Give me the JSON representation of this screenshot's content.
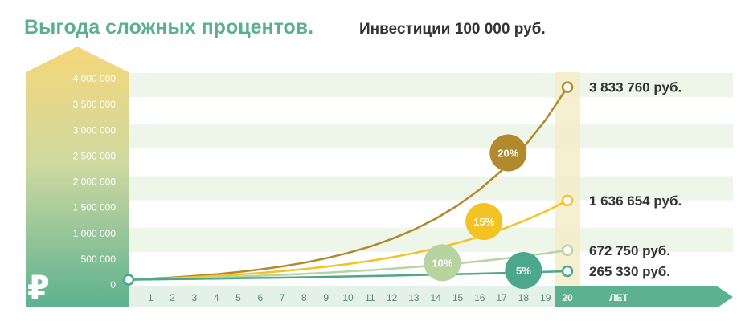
{
  "header": {
    "title": "Выгода сложных процентов.",
    "subtitle": "Инвестиции  100 000 руб."
  },
  "currency_symbol": "₽",
  "chart_data": {
    "type": "line",
    "x": [
      0,
      1,
      2,
      3,
      4,
      5,
      6,
      7,
      8,
      9,
      10,
      11,
      12,
      13,
      14,
      15,
      16,
      17,
      18,
      19,
      20
    ],
    "x_tick_labels": [
      "1",
      "2",
      "3",
      "4",
      "5",
      "6",
      "7",
      "8",
      "9",
      "10",
      "11",
      "12",
      "13",
      "14",
      "15",
      "16",
      "17",
      "18",
      "19",
      "20"
    ],
    "x_unit_label": "ЛЕТ",
    "y_tick_labels": [
      "0",
      "500 000",
      "1 000 000",
      "1 500 000",
      "2 000 000",
      "2 500 000",
      "3 000 000",
      "3 500 000",
      "4 000 000"
    ],
    "ylim": [
      0,
      4000000
    ],
    "grid": "horizontal bands",
    "series": [
      {
        "name": "5%",
        "rate": 0.05,
        "color": "#4ba88a",
        "end_value_label": "265 330 руб.",
        "values": [
          100000,
          105000,
          110250,
          115763,
          121551,
          127628,
          134010,
          140710,
          147746,
          155133,
          162889,
          171034,
          179586,
          188565,
          197993,
          207893,
          218287,
          229202,
          240662,
          252695,
          265330
        ]
      },
      {
        "name": "10%",
        "rate": 0.1,
        "color": "#b6d3a0",
        "end_value_label": "672 750 руб.",
        "values": [
          100000,
          110000,
          121000,
          133100,
          146410,
          161051,
          177156,
          194872,
          214359,
          235795,
          259374,
          285312,
          313843,
          345227,
          379750,
          417725,
          459497,
          505447,
          555992,
          611591,
          672750
        ]
      },
      {
        "name": "15%",
        "rate": 0.15,
        "color": "#f2c323",
        "end_value_label": "1 636 654 руб.",
        "values": [
          100000,
          115000,
          132250,
          152088,
          174901,
          201136,
          231306,
          266002,
          305902,
          351788,
          404556,
          465239,
          535025,
          615279,
          707571,
          813706,
          935762,
          1076126,
          1237545,
          1423177,
          1636654
        ]
      },
      {
        "name": "20%",
        "rate": 0.2,
        "color": "#b08a2c",
        "end_value_label": "3 833 760 руб.",
        "values": [
          100000,
          120000,
          144000,
          172800,
          207360,
          248832,
          298598,
          358318,
          429982,
          515978,
          619174,
          743008,
          891610,
          1069932,
          1283918,
          1540702,
          1848843,
          2218611,
          2662333,
          3194800,
          3833760
        ]
      }
    ],
    "badges": [
      {
        "label": "20%",
        "x": 17.3,
        "y": 2560000,
        "color": "#b08a2c"
      },
      {
        "label": "15%",
        "x": 16.2,
        "y": 1230000,
        "color": "#f2c323"
      },
      {
        "label": "10%",
        "x": 14.3,
        "y": 430000,
        "color": "#b6d3a0"
      },
      {
        "label": "5%",
        "x": 18.0,
        "y": 280000,
        "color": "#4ba88a"
      }
    ]
  }
}
